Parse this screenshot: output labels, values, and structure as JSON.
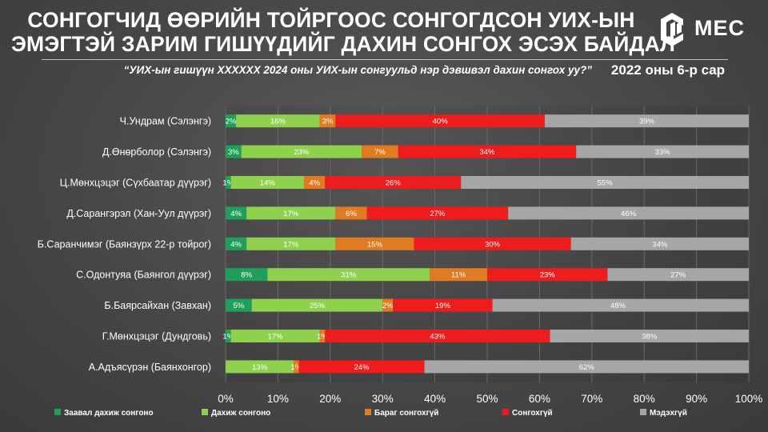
{
  "header": {
    "title_line1": "СОНГОГЧИД ӨӨРИЙН ТОЙРГООС СОНГОГДСОН УИХ-ЫН",
    "title_line2": "ЭМЭГТЭЙ ЗАРИМ ГИШҮҮДИЙГ ДАХИН СОНГОХ ЭСЭХ БАЙДАЛ",
    "logo_text": "MEC",
    "question": "“УИХ-ын гишүүн XXXXXX 2024 оны УИХ-ын сонгуульд нэр дэвшвэл дахин сонгох уу?”",
    "date_label": "2022 оны 6-р сар"
  },
  "chart_data": {
    "type": "bar",
    "orientation": "horizontal",
    "stacked": true,
    "percent_axis": true,
    "xlim": [
      0,
      100
    ],
    "xticks": [
      "0%",
      "10%",
      "20%",
      "30%",
      "40%",
      "50%",
      "60%",
      "70%",
      "80%",
      "90%",
      "100%"
    ],
    "grid": true,
    "legend_position": "bottom",
    "categories": [
      "Ч.Ундрам (Сэлэнгэ)",
      "Д.Өнөрболор (Сэлэнгэ)",
      "Ц.Мөнхцэцэг (Сүхбаатар дүүрэг)",
      "Д.Сарангэрэл (Хан-Уул дүүрэг)",
      "Б.Саранчимэг (Баянзүрх 22-р тойрог)",
      "С.Одонтуяа (Баянгол дүүрэг)",
      "Б.Баярсайхан (Завхан)",
      "Г.Мөнхцэцэг (Дундговь)",
      "А.Адъясүрэн (Баянхонгор)"
    ],
    "series": [
      {
        "name": "Заавал дахиж сонгоно",
        "color": "#1fa05a",
        "values": [
          2,
          3,
          1,
          4,
          4,
          8,
          5,
          1,
          0
        ]
      },
      {
        "name": "Дахиж сонгоно",
        "color": "#8fd14f",
        "values": [
          16,
          23,
          14,
          17,
          17,
          31,
          25,
          17,
          13
        ]
      },
      {
        "name": "Бараг сонгохгүй",
        "color": "#e07b22",
        "values": [
          3,
          7,
          4,
          6,
          15,
          11,
          2,
          1,
          1
        ]
      },
      {
        "name": "Сонгохгүй",
        "color": "#ee1c1c",
        "values": [
          40,
          34,
          26,
          27,
          30,
          23,
          19,
          43,
          24
        ]
      },
      {
        "name": "Мэдэхгүй",
        "color": "#a6a6a6",
        "values": [
          39,
          33,
          55,
          46,
          34,
          27,
          48,
          38,
          62
        ]
      }
    ]
  }
}
